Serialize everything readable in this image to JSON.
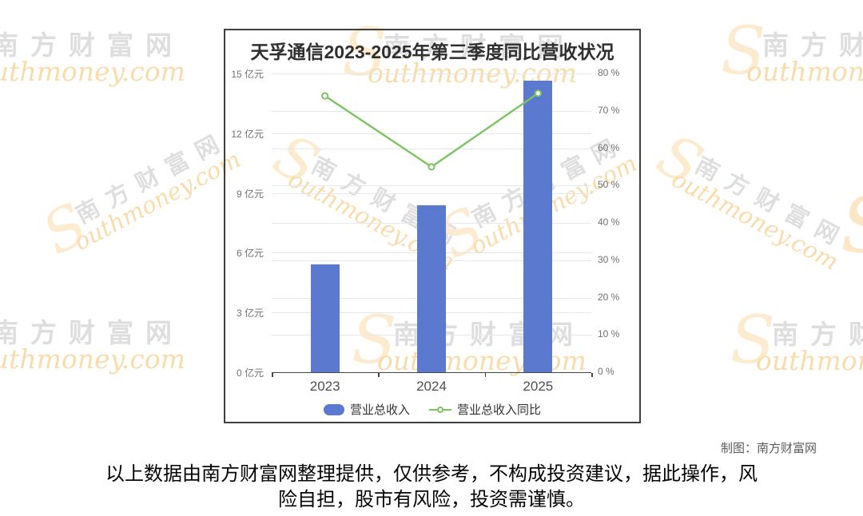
{
  "chart_data": {
    "type": "bar",
    "title": "天孚通信2023-2025年第三季度同比营收状况",
    "categories": [
      "2023",
      "2024",
      "2025"
    ],
    "series": [
      {
        "name": "营业总收入",
        "type": "bar",
        "axis": "left",
        "unit": "亿元",
        "color": "#5b79cf",
        "values": [
          5.43,
          8.38,
          14.64
        ]
      },
      {
        "name": "营业总收入同比",
        "type": "line",
        "axis": "right",
        "unit": "%",
        "color": "#7cc362",
        "values": [
          74.0,
          55.0,
          74.7
        ]
      }
    ],
    "left_axis": {
      "min": 0,
      "max": 15,
      "step": 3,
      "unit": "亿元",
      "ticks": [
        "0 亿元",
        "3 亿元",
        "6 亿元",
        "9 亿元",
        "12 亿元",
        "15 亿元"
      ]
    },
    "right_axis": {
      "min": 0,
      "max": 80,
      "step": 10,
      "unit": "%",
      "ticks": [
        "0 %",
        "10 %",
        "20 %",
        "30 %",
        "40 %",
        "50 %",
        "60 %",
        "70 %",
        "80 %"
      ]
    },
    "grid": true,
    "legend_position": "bottom"
  },
  "watermark": {
    "s": "S",
    "cn": "南方财富网",
    "script": "outhmoney.com",
    "gray": "#dedede",
    "orange": "#f8dcab"
  },
  "footer": {
    "credit": "制图：南方财富网",
    "disclaimer_line1": "以上数据由南方财富网整理提供，仅供参考，不构成投资建议，据此操作，风",
    "disclaimer_line2": "险自担，股市有风险，投资需谨慎。"
  }
}
